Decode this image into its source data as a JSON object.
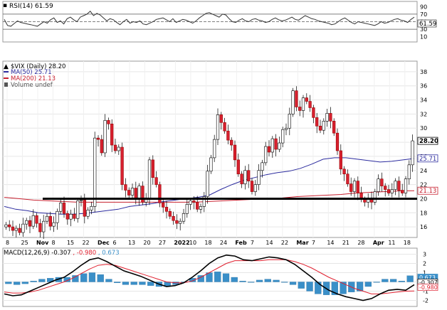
{
  "chart_data": [
    {
      "type": "line",
      "panel": "rsi",
      "legend": "RSI(14) 61.59",
      "ylim": [
        0,
        100
      ],
      "yticks": [
        90,
        70,
        50,
        30,
        10
      ],
      "current_value": 61.59,
      "current_label": "61.59",
      "reference_levels": [
        70,
        50,
        30
      ],
      "series": [
        {
          "values": [
            56,
            40,
            38,
            45,
            52,
            48,
            46,
            44,
            42,
            40,
            38,
            44,
            50,
            46,
            55,
            60,
            48,
            52,
            44,
            58,
            62,
            55,
            50,
            62,
            66,
            70,
            78,
            66,
            72,
            68,
            60,
            52,
            58,
            55,
            48,
            42,
            50,
            56,
            46,
            50,
            48,
            52,
            44,
            42,
            46,
            50,
            56,
            58,
            60,
            55,
            50,
            58,
            48,
            52,
            56,
            54,
            50,
            46,
            52,
            60,
            66,
            72,
            74,
            70,
            66,
            62,
            70,
            68,
            58,
            50,
            48,
            54,
            58,
            52,
            50,
            56,
            58,
            54,
            52,
            48,
            50,
            56,
            60,
            55,
            52,
            54,
            58,
            62,
            56,
            54,
            60,
            66,
            62,
            58,
            56,
            52,
            50,
            48,
            46,
            42,
            44,
            50,
            56,
            60,
            54,
            48,
            44,
            50,
            48,
            46,
            44,
            42,
            40,
            44,
            50,
            46,
            48,
            52,
            56,
            58,
            54,
            52,
            48,
            56,
            62
          ]
        }
      ]
    },
    {
      "type": "candlestick",
      "panel": "price",
      "legend": [
        {
          "label": "$VIX (Daily) 28.20",
          "color": "#000000"
        },
        {
          "label": "MA(50) 25.71",
          "color": "#2b2b9e"
        },
        {
          "label": "MA(200) 21.13",
          "color": "#c8202f"
        },
        {
          "label": "Volume undef",
          "color": "#555555"
        }
      ],
      "ylim": [
        14.5,
        39.5
      ],
      "yticks": [
        16,
        18,
        20,
        22,
        24,
        26,
        28,
        30,
        32,
        34,
        36,
        38
      ],
      "xlabels": [
        "8",
        "25",
        "Nov",
        "8",
        "15",
        "22",
        "Dec",
        "6",
        "13",
        "20",
        "27",
        "2022",
        "10",
        "18",
        "24",
        "Feb",
        "7",
        "14",
        "22",
        "Mar",
        "7",
        "14",
        "21",
        "28",
        "Apr",
        "11",
        "18"
      ],
      "value_tags": [
        {
          "value": 28.2,
          "label": "28.20"
        },
        {
          "value": 25.71,
          "label": "25.71"
        },
        {
          "value": 21.13,
          "label": "21.13"
        }
      ],
      "horizontal_line": 20,
      "bullish_color": "#ffffff",
      "bearish_color": "#d8202f",
      "series": [
        {
          "name": "$VIX",
          "values": [
            16.3,
            16.0,
            15.5,
            15.8,
            15.2,
            16.4,
            16.9,
            16.1,
            17.6,
            16.5,
            15.3,
            16.8,
            17.5,
            16.1,
            16.6,
            18.2,
            19.4,
            17.9,
            17.1,
            17.8,
            17.2,
            19.7,
            19.8,
            17.5,
            18.4,
            18.9,
            28.6,
            28.4,
            26.5,
            31.1,
            30.6,
            27.6,
            26.8,
            27.3,
            22.0,
            21.2,
            20.5,
            21.5,
            20.0,
            21.8,
            19.5,
            19.9,
            25.5,
            23.0,
            22.0,
            19.4,
            18.8,
            18.2,
            17.5,
            16.9,
            16.5,
            16.8,
            17.9,
            19.2,
            19.7,
            19.5,
            18.5,
            18.9,
            20.3,
            23.9,
            25.8,
            28.4,
            31.9,
            30.8,
            29.6,
            28.3,
            27.6,
            25.5,
            23.5,
            22.1,
            24.0,
            22.5,
            21.0,
            22.0,
            24.0,
            25.1,
            27.4,
            26.6,
            28.5,
            27.0,
            27.9,
            29.8,
            30.0,
            32.0,
            35.3,
            33.0,
            32.5,
            34.3,
            33.8,
            32.9,
            31.5,
            30.3,
            29.7,
            31.0,
            32.1,
            31.0,
            29.3,
            26.8,
            24.2,
            23.5,
            22.1,
            21.0,
            22.5,
            20.8,
            19.9,
            19.5,
            20.1,
            19.5,
            21.0,
            22.8,
            21.8,
            21.3,
            20.8,
            21.3,
            22.5,
            21.2,
            20.8,
            22.8,
            24.8,
            28.2
          ]
        },
        {
          "name": "MA(50)",
          "values": [
            18.9,
            18.5,
            18.3,
            18.0,
            17.9,
            17.8,
            17.8,
            17.9,
            18.1,
            18.3,
            18.5,
            18.9,
            19.1,
            19.3,
            19.6,
            19.8,
            20.0,
            20.2,
            20.5,
            21.3,
            22.0,
            22.6,
            23.0,
            23.4,
            23.7,
            23.9,
            24.3,
            24.9,
            25.6,
            25.8,
            25.8,
            25.6,
            25.4,
            25.2,
            25.3,
            25.5,
            25.7
          ]
        },
        {
          "name": "MA(200)",
          "values": [
            20.2,
            20.0,
            19.8,
            19.7,
            19.6,
            19.5,
            19.5,
            19.5,
            19.5,
            19.5,
            19.5,
            19.5,
            19.5,
            19.5,
            19.6,
            19.7,
            19.8,
            19.9,
            20.0,
            20.1,
            20.3,
            20.4,
            20.5,
            20.6,
            20.8,
            20.9,
            21.0,
            21.1,
            21.13
          ]
        }
      ]
    },
    {
      "type": "line",
      "panel": "macd",
      "legend": [
        {
          "label": "MACD(12,26,9) -0.307",
          "color": "#000000"
        },
        {
          "label": ", -0.980",
          "color": "#e0202f"
        },
        {
          "label": ", 0.673",
          "color": "#3a8fc8"
        }
      ],
      "ylim": [
        -2.5,
        3.5
      ],
      "yticks": [
        3,
        2,
        1,
        0,
        -1,
        -2
      ],
      "value_tags": [
        {
          "value": 0.673,
          "label": "0.673"
        },
        {
          "value": -0.307,
          "label": "-0.307"
        },
        {
          "value": -0.98,
          "label": "-0.980"
        }
      ],
      "series": [
        {
          "name": "MACD(12,26,9)",
          "values": [
            -1.3,
            -1.5,
            -1.4,
            -1.0,
            -0.6,
            -0.2,
            0.2,
            0.5,
            1.1,
            1.8,
            2.4,
            2.6,
            2.2,
            1.7,
            1.2,
            0.9,
            0.6,
            0.2,
            -0.2,
            -0.5,
            -0.4,
            -0.1,
            0.5,
            1.2,
            2.0,
            2.6,
            2.9,
            2.8,
            2.4,
            2.3,
            2.5,
            2.7,
            2.6,
            2.4,
            1.9,
            1.2,
            0.5,
            -0.3,
            -0.9,
            -1.3,
            -1.6,
            -1.8,
            -2.0,
            -1.8,
            -1.3,
            -0.9,
            -0.8,
            -0.9,
            -0.3
          ]
        },
        {
          "name": "Signal",
          "values": [
            -1.1,
            -1.2,
            -1.2,
            -1.1,
            -0.9,
            -0.6,
            -0.3,
            0.0,
            0.4,
            0.9,
            1.4,
            1.8,
            1.9,
            1.8,
            1.5,
            1.2,
            0.9,
            0.6,
            0.3,
            0.0,
            -0.1,
            -0.1,
            0.1,
            0.5,
            1.0,
            1.5,
            2.0,
            2.3,
            2.3,
            2.3,
            2.3,
            2.4,
            2.4,
            2.4,
            2.2,
            1.9,
            1.5,
            1.0,
            0.5,
            0.1,
            -0.3,
            -0.7,
            -1.0,
            -1.3,
            -1.3,
            -1.2,
            -1.1,
            -1.0,
            -0.98
          ]
        },
        {
          "name": "Histogram",
          "values": [
            -0.2,
            -0.3,
            -0.2,
            0.1,
            0.3,
            0.4,
            0.5,
            0.5,
            0.7,
            0.9,
            1.0,
            0.8,
            0.3,
            -0.1,
            -0.3,
            -0.3,
            -0.3,
            -0.4,
            -0.5,
            -0.5,
            -0.3,
            0.0,
            0.4,
            0.7,
            1.0,
            1.1,
            0.9,
            0.5,
            0.1,
            0.0,
            0.2,
            0.3,
            0.2,
            0.0,
            -0.3,
            -0.7,
            -1.0,
            -1.3,
            -1.4,
            -1.4,
            -1.3,
            -1.1,
            -1.0,
            -0.5,
            0.0,
            0.3,
            0.3,
            0.1,
            0.673
          ]
        }
      ]
    }
  ]
}
